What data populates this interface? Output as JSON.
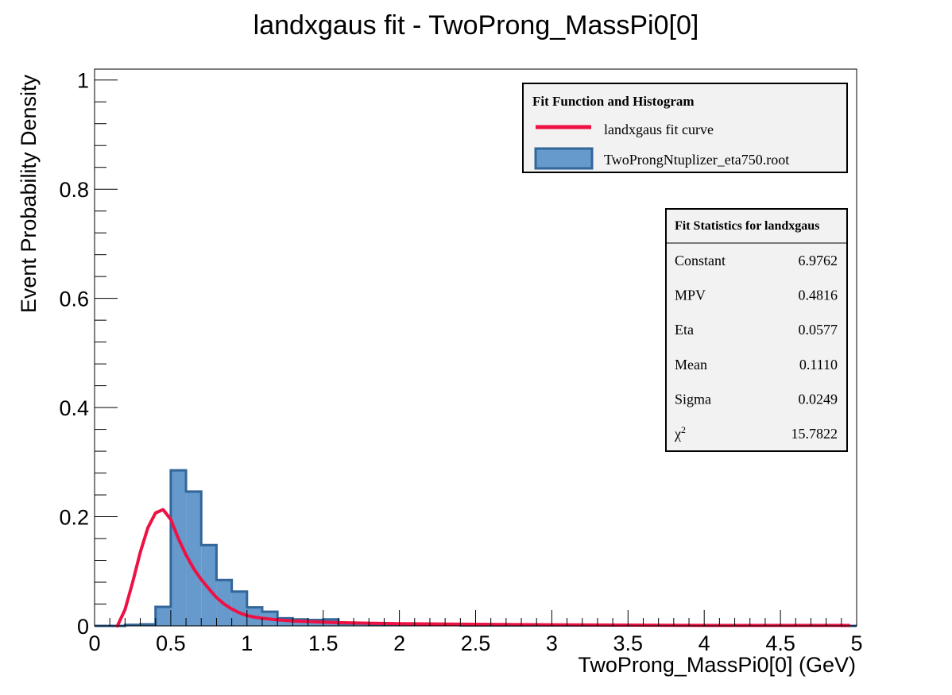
{
  "chart_data": {
    "type": "bar",
    "title": "landxgaus fit - TwoProng_MassPi0[0]",
    "xlabel": "TwoProng_MassPi0[0] (GeV)",
    "ylabel": "Event Probability Density",
    "xlim": [
      0,
      5
    ],
    "ylim": [
      0,
      1.02
    ],
    "x_ticks": [
      0,
      0.5,
      1,
      1.5,
      2,
      2.5,
      3,
      3.5,
      4,
      4.5,
      5
    ],
    "x_tick_labels": [
      "0",
      "0.5",
      "1",
      "1.5",
      "2",
      "2.5",
      "3",
      "3.5",
      "4",
      "4.5",
      "5"
    ],
    "y_ticks": [
      0,
      0.2,
      0.4,
      0.6,
      0.8,
      1
    ],
    "y_tick_labels": [
      "0",
      "0.2",
      "0.4",
      "0.6",
      "0.8",
      "1"
    ],
    "grid": false,
    "histogram": {
      "name": "TwoProngNtuplizer_eta750.root",
      "color": "#6699CC",
      "edge_color": "#336699",
      "bin_width": 0.1,
      "bin_edges": [
        0,
        0.1,
        0.2,
        0.3,
        0.4,
        0.5,
        0.6,
        0.7,
        0.8,
        0.9,
        1.0,
        1.1,
        1.2,
        1.3,
        1.4,
        1.5,
        1.6,
        1.7,
        1.8,
        1.9,
        2.0,
        2.1,
        2.2,
        2.3,
        2.4,
        2.5,
        2.6,
        2.7,
        2.8,
        2.9,
        3.0,
        3.1,
        3.2,
        3.3,
        3.4,
        3.5,
        3.6,
        3.7,
        3.8,
        3.9,
        4.0,
        4.1,
        4.2,
        4.3,
        4.4,
        4.5,
        4.6,
        4.7,
        4.8,
        4.9,
        5.0
      ],
      "values": [
        0,
        0,
        0.002,
        0.003,
        0.035,
        0.285,
        0.246,
        0.148,
        0.084,
        0.063,
        0.034,
        0.026,
        0.014,
        0.012,
        0.011,
        0.012,
        0.004,
        0.004,
        0.003,
        0.003,
        0.002,
        0.002,
        0.002,
        0.002,
        0.001,
        0.001,
        0.001,
        0.001,
        0.001,
        0.001,
        0.001,
        0.001,
        0.001,
        0.001,
        0.001,
        0.001,
        0.001,
        0.001,
        0.001,
        0.001,
        0.001,
        0.001,
        0.001,
        0.001,
        0.001,
        0.001,
        0.001,
        0.001,
        0.001,
        0
      ]
    },
    "fit_curve": {
      "name": "landxgaus fit curve",
      "color": "#EE1144",
      "x": [
        0.15,
        0.2,
        0.25,
        0.3,
        0.35,
        0.4,
        0.45,
        0.5,
        0.55,
        0.6,
        0.65,
        0.7,
        0.75,
        0.8,
        0.85,
        0.9,
        0.95,
        1.0,
        1.05,
        1.1,
        1.2,
        1.3,
        1.4,
        1.5,
        1.6,
        1.8,
        2.0,
        2.5,
        3.0,
        3.5,
        4.0,
        4.5,
        4.95
      ],
      "y": [
        0.0,
        0.03,
        0.08,
        0.135,
        0.18,
        0.207,
        0.213,
        0.195,
        0.16,
        0.13,
        0.105,
        0.085,
        0.068,
        0.052,
        0.04,
        0.031,
        0.024,
        0.019,
        0.016,
        0.014,
        0.011,
        0.009,
        0.008,
        0.007,
        0.006,
        0.005,
        0.004,
        0.003,
        0.002,
        0.0015,
        0.001,
        0.001,
        0.001
      ]
    },
    "legend": {
      "title": "Fit Function and Histogram",
      "placement": "top-right",
      "entries": [
        "landxgaus fit curve",
        "TwoProngNtuplizer_eta750.root"
      ]
    },
    "stats_box": {
      "title": "Fit Statistics for landxgaus",
      "placement": "right",
      "rows": [
        {
          "label": "Constant",
          "value": "6.9762"
        },
        {
          "label": "MPV",
          "value": "0.4816"
        },
        {
          "label": "Eta",
          "value": "0.0577"
        },
        {
          "label": "Mean",
          "value": "0.1110"
        },
        {
          "label": "Sigma",
          "value": "0.0249"
        },
        {
          "label": "χ",
          "sup": "2",
          "value": "15.7822"
        }
      ]
    }
  }
}
